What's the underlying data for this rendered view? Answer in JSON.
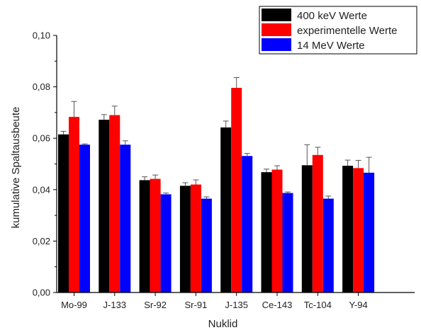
{
  "chart_data": {
    "type": "bar",
    "xlabel": "Nuklid",
    "ylabel": "kumulative Spaltausbeute",
    "ylim": [
      0,
      0.1
    ],
    "yticks": [
      "0,00",
      "0,02",
      "0,04",
      "0,06",
      "0,08",
      "0,10"
    ],
    "categories": [
      "Mo-99",
      "J-133",
      "Sr-92",
      "Sr-91",
      "J-135",
      "Ce-143",
      "Tc-104",
      "Y-94"
    ],
    "series": [
      {
        "name": "400 keV Werte",
        "color": "#000000",
        "values": [
          0.0615,
          0.0672,
          0.0437,
          0.0415,
          0.0642,
          0.0468,
          0.0495,
          0.0493
        ],
        "errors": [
          0.0012,
          0.002,
          0.0013,
          0.0012,
          0.0025,
          0.0012,
          0.008,
          0.0022
        ]
      },
      {
        "name": "experimentelle Werte",
        "color": "#ff0000",
        "values": [
          0.0683,
          0.069,
          0.0442,
          0.042,
          0.0796,
          0.0478,
          0.0535,
          0.0484
        ],
        "errors": [
          0.006,
          0.0035,
          0.0015,
          0.0018,
          0.004,
          0.0015,
          0.003,
          0.003
        ]
      },
      {
        "name": "14 MeV Werte",
        "color": "#0000ff",
        "values": [
          0.0575,
          0.0575,
          0.0382,
          0.0365,
          0.0531,
          0.0387,
          0.0365,
          0.0466
        ],
        "errors": [
          0.0003,
          0.0015,
          0.0005,
          0.0007,
          0.001,
          0.0004,
          0.001,
          0.006
        ]
      }
    ],
    "legend_position": "top-right",
    "error_bars": true,
    "grid": false
  }
}
